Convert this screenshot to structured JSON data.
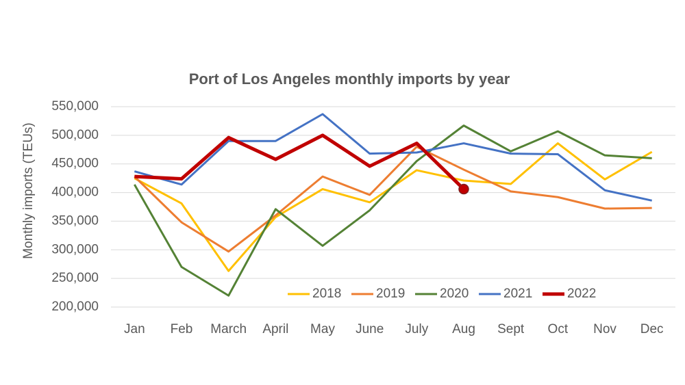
{
  "chart_data": {
    "type": "line",
    "title": "Port of Los Angeles monthly imports by year",
    "y_label": "Monthly imports (TEUs)",
    "categories": [
      "Jan",
      "Feb",
      "March",
      "April",
      "May",
      "June",
      "July",
      "Aug",
      "Sept",
      "Oct",
      "Nov",
      "Dec"
    ],
    "series": [
      {
        "name": "2018",
        "color": "#FFC000",
        "values": [
          425000,
          381000,
          263000,
          357000,
          406000,
          383000,
          439000,
          421000,
          415000,
          486000,
          423000,
          471000
        ]
      },
      {
        "name": "2019",
        "color": "#ED7D31",
        "values": [
          428000,
          348000,
          297000,
          360000,
          428000,
          396000,
          480000,
          440000,
          402000,
          392000,
          372000,
          373000
        ]
      },
      {
        "name": "2020",
        "color": "#548235",
        "values": [
          414000,
          270000,
          220000,
          371000,
          307000,
          369000,
          455000,
          517000,
          472000,
          507000,
          465000,
          460000
        ]
      },
      {
        "name": "2021",
        "color": "#4472C4",
        "values": [
          437000,
          414000,
          490000,
          490000,
          537000,
          468000,
          470000,
          486000,
          468000,
          467000,
          404000,
          386000
        ]
      },
      {
        "name": "2022",
        "color": "#C00000",
        "values": [
          428000,
          424000,
          496000,
          458000,
          500000,
          446000,
          486000,
          406000,
          null,
          null,
          null,
          null
        ],
        "width": 5,
        "marker": "last"
      }
    ],
    "ylim": [
      200000,
      550000
    ],
    "yticks": [
      {
        "value": 200000,
        "label": "200,000"
      },
      {
        "value": 250000,
        "label": "250,000"
      },
      {
        "value": 300000,
        "label": "300,000"
      },
      {
        "value": 350000,
        "label": "350,000"
      },
      {
        "value": 400000,
        "label": "400,000"
      },
      {
        "value": 450000,
        "label": "450,000"
      },
      {
        "value": 500000,
        "label": "500,000"
      },
      {
        "value": 550000,
        "label": "550,000"
      }
    ],
    "grid": true,
    "legend": "bottom"
  }
}
